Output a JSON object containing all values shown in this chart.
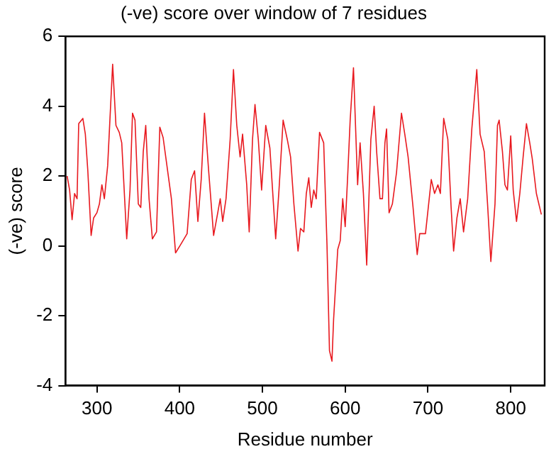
{
  "chart_data": {
    "type": "line",
    "title": "(-ve) score over window of 7 residues",
    "xlabel": "Residue number",
    "ylabel": "(-ve) score",
    "xlim": [
      262,
      841
    ],
    "xticks": [
      300,
      400,
      500,
      600,
      700,
      800
    ],
    "ylim": [
      -4,
      6
    ],
    "yticks": [
      -4,
      -2,
      0,
      2,
      4,
      6
    ],
    "grid": false,
    "legend": false,
    "marker": "none",
    "line_style": "solid",
    "series": [
      {
        "color": "#e8191f",
        "x": [
          264,
          267,
          270,
          273,
          276,
          278,
          283,
          286,
          289,
          293,
          296,
          300,
          303,
          306,
          309,
          313,
          319,
          323,
          327,
          330,
          336,
          340,
          343,
          346,
          350,
          353,
          356,
          359,
          363,
          367,
          372,
          376,
          380,
          384,
          390,
          395,
          401,
          409,
          414,
          418,
          422,
          426,
          430,
          435,
          441,
          446,
          449,
          452,
          456,
          461,
          465,
          469,
          473,
          476,
          481,
          484,
          488,
          491,
          495,
          499,
          504,
          509,
          516,
          520,
          525,
          530,
          534,
          538,
          543,
          546,
          550,
          553,
          556,
          559,
          562,
          565,
          569,
          574,
          578,
          581,
          584,
          586,
          591,
          594,
          597,
          600,
          603,
          606,
          610,
          615,
          618,
          622,
          626,
          631,
          635,
          638,
          642,
          645,
          648,
          650,
          653,
          657,
          662,
          668,
          672,
          676,
          682,
          687,
          690,
          697,
          704,
          708,
          712,
          715,
          719,
          724,
          728,
          731,
          735,
          739,
          743,
          748,
          753,
          759,
          763,
          768,
          772,
          776,
          781,
          784,
          786,
          790,
          793,
          796,
          800,
          803,
          807,
          811,
          815,
          819,
          823,
          826,
          831,
          837
        ],
        "values": [
          2.0,
          1.6,
          0.75,
          1.5,
          1.35,
          3.5,
          3.65,
          3.2,
          2.15,
          0.3,
          0.8,
          0.95,
          1.2,
          1.75,
          1.35,
          2.3,
          5.2,
          3.45,
          3.25,
          2.95,
          0.2,
          1.6,
          3.8,
          3.6,
          1.2,
          1.1,
          2.7,
          3.45,
          1.35,
          0.2,
          0.4,
          3.4,
          3.1,
          2.4,
          1.35,
          -0.2,
          0.03,
          0.35,
          1.9,
          2.15,
          0.7,
          1.9,
          3.8,
          2.15,
          0.3,
          0.95,
          1.35,
          0.7,
          1.35,
          3.05,
          5.05,
          3.45,
          2.55,
          3.2,
          1.75,
          0.4,
          3.05,
          4.05,
          3.05,
          1.6,
          3.45,
          2.8,
          0.2,
          1.6,
          3.6,
          3.05,
          2.55,
          1.2,
          -0.15,
          0.5,
          0.4,
          1.5,
          1.95,
          1.1,
          1.6,
          1.35,
          3.25,
          2.95,
          0.03,
          -3.0,
          -3.3,
          -2.1,
          -0.1,
          0.15,
          1.35,
          0.55,
          2.0,
          3.6,
          5.1,
          1.75,
          2.95,
          1.5,
          -0.55,
          3.05,
          4.0,
          2.7,
          1.35,
          1.35,
          2.95,
          3.35,
          0.95,
          1.2,
          2.1,
          3.8,
          3.2,
          2.55,
          1.1,
          -0.25,
          0.35,
          0.35,
          1.9,
          1.5,
          1.75,
          1.5,
          3.65,
          3.05,
          1.1,
          -0.15,
          0.8,
          1.35,
          0.4,
          1.35,
          3.35,
          5.05,
          3.2,
          2.7,
          1.2,
          -0.45,
          1.2,
          3.45,
          3.6,
          2.7,
          1.75,
          1.6,
          3.15,
          1.6,
          0.7,
          1.5,
          2.55,
          3.5,
          2.95,
          2.5,
          1.5,
          0.9
        ]
      }
    ]
  }
}
